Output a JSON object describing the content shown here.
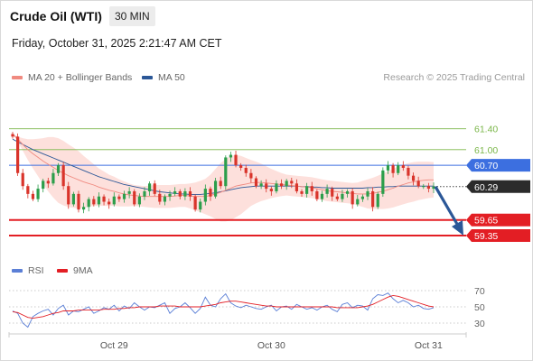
{
  "header": {
    "title": "Crude Oil (WTI)",
    "interval": "30 MIN",
    "datetime": "Friday, October 31, 2025 2:21:47 AM CET"
  },
  "legend": {
    "ma20_label": "MA 20 + Bollinger Bands",
    "ma50_label": "MA 50",
    "credit": "Research © 2025 Trading Central"
  },
  "rsi_legend": {
    "rsi_label": "RSI",
    "ma_label": "9MA"
  },
  "colors": {
    "up": "#2c9e4b",
    "down": "#d9342b",
    "ma20": "#f08a80",
    "ma50": "#2b5797",
    "band_fill": "#fde0dc",
    "support": "#e31e24",
    "resistance_green": "#7ab648",
    "pivot_blue": "#3c6fe0",
    "current": "#2b2b2b",
    "arrow": "#2b5797",
    "rsi": "#5b7fd6",
    "rsi_ma": "#e31e24"
  },
  "chart_data": [
    {
      "type": "candlestick",
      "title": "Crude Oil (WTI)",
      "interval": "30 MIN",
      "ylim": [
        59.16,
        61.62
      ],
      "x_tick_labels": [
        "Oct 29",
        "Oct 30",
        "Oct 31"
      ],
      "x_tick_index": [
        20,
        51,
        82
      ],
      "closes": [
        61.25,
        60.55,
        60.3,
        60.15,
        60.05,
        60.25,
        60.4,
        60.35,
        60.55,
        60.7,
        60.3,
        59.95,
        60.15,
        59.85,
        59.9,
        60.05,
        59.95,
        60.1,
        60.0,
        59.95,
        60.1,
        60.05,
        60.15,
        60.2,
        59.95,
        60.1,
        60.2,
        60.35,
        60.15,
        60.0,
        60.1,
        60.15,
        60.2,
        60.1,
        60.2,
        60.1,
        59.85,
        60.0,
        60.25,
        60.1,
        60.4,
        60.3,
        60.85,
        60.9,
        60.7,
        60.65,
        60.55,
        60.45,
        60.3,
        60.35,
        60.25,
        60.2,
        60.35,
        60.3,
        60.4,
        60.35,
        60.2,
        60.15,
        60.3,
        60.2,
        60.05,
        60.15,
        60.25,
        60.1,
        60.05,
        60.15,
        60.2,
        59.95,
        60.05,
        60.1,
        60.2,
        59.9,
        60.15,
        60.6,
        60.7,
        60.55,
        60.7,
        60.65,
        60.5,
        60.4,
        60.3,
        60.3,
        60.25,
        60.29
      ],
      "open0": 61.3,
      "series_bands": {
        "ma20": [
          61.3,
          61.2,
          61.1,
          61.0,
          60.92,
          60.85,
          60.78,
          60.72,
          60.66,
          60.6,
          60.55,
          60.5,
          60.46,
          60.42,
          60.38,
          60.35,
          60.32,
          60.28,
          60.25,
          60.22,
          60.2,
          60.17,
          60.15,
          60.13,
          60.12,
          60.11,
          60.1,
          60.1,
          60.1,
          60.1,
          60.1,
          60.1,
          60.11,
          60.12,
          60.12,
          60.11,
          60.1,
          60.1,
          60.1,
          60.12,
          60.15,
          60.18,
          60.22,
          60.26,
          60.3,
          60.32,
          60.34,
          60.36,
          60.37,
          60.37,
          60.36,
          60.35,
          60.34,
          60.33,
          60.32,
          60.31,
          60.3,
          60.29,
          60.28,
          60.27,
          60.25,
          60.23,
          60.21,
          60.2,
          60.19,
          60.18,
          60.17,
          60.16,
          60.15,
          60.15,
          60.15,
          60.16,
          60.18,
          60.2,
          60.23,
          60.26,
          60.3,
          60.33,
          60.36,
          60.38,
          60.4,
          60.41,
          60.42,
          60.42
        ],
        "upper_offset": [
          0.0,
          0.05,
          0.12,
          0.2,
          0.28,
          0.36,
          0.44,
          0.52,
          0.58,
          0.62,
          0.62,
          0.6,
          0.58,
          0.55,
          0.5,
          0.45,
          0.4,
          0.36,
          0.33,
          0.3,
          0.28,
          0.26,
          0.24,
          0.22,
          0.2,
          0.2,
          0.2,
          0.21,
          0.22,
          0.22,
          0.22,
          0.22,
          0.22,
          0.22,
          0.22,
          0.24,
          0.27,
          0.3,
          0.34,
          0.4,
          0.48,
          0.56,
          0.6,
          0.62,
          0.6,
          0.56,
          0.5,
          0.44,
          0.4,
          0.36,
          0.32,
          0.28,
          0.25,
          0.22,
          0.2,
          0.2,
          0.2,
          0.2,
          0.2,
          0.2,
          0.2,
          0.2,
          0.2,
          0.2,
          0.2,
          0.2,
          0.2,
          0.2,
          0.22,
          0.25,
          0.28,
          0.3,
          0.32,
          0.34,
          0.36,
          0.37,
          0.38,
          0.38,
          0.38,
          0.38,
          0.37,
          0.36,
          0.35,
          0.34
        ],
        "ma50": [
          61.2,
          61.15,
          61.1,
          61.05,
          61.0,
          60.96,
          60.92,
          60.88,
          60.84,
          60.8,
          60.76,
          60.72,
          60.68,
          60.64,
          60.6,
          60.56,
          60.52,
          60.48,
          60.45,
          60.42,
          60.39,
          60.36,
          60.33,
          60.31,
          60.29,
          60.27,
          60.25,
          60.23,
          60.21,
          60.19,
          60.18,
          60.17,
          60.16,
          60.15,
          60.15,
          60.14,
          60.14,
          60.14,
          60.15,
          60.16,
          60.17,
          60.19,
          60.21,
          60.23,
          60.25,
          60.27,
          60.28,
          60.29,
          60.3,
          60.3,
          60.3,
          60.3,
          60.3,
          60.3,
          60.3,
          60.3,
          60.3,
          60.29,
          60.29,
          60.28,
          60.28,
          60.27,
          60.27,
          60.26,
          60.26,
          60.26,
          60.26,
          60.26,
          60.26,
          60.26,
          60.27,
          60.27,
          60.28,
          60.28,
          60.29,
          60.29,
          60.3,
          60.3,
          60.3,
          60.3,
          60.3,
          60.3,
          60.3,
          60.3
        ]
      },
      "levels": [
        {
          "value": 61.4,
          "label": "61.40",
          "kind": "resistance"
        },
        {
          "value": 61.0,
          "label": "61.00",
          "kind": "resistance"
        },
        {
          "value": 60.7,
          "label": "60.70",
          "kind": "pivot"
        },
        {
          "value": 60.29,
          "label": "60.29",
          "kind": "current"
        },
        {
          "value": 59.65,
          "label": "59.65",
          "kind": "support"
        },
        {
          "value": 59.35,
          "label": "59.35",
          "kind": "support"
        }
      ],
      "forecast_arrow": {
        "from_value": 60.29,
        "to_value": 59.42,
        "direction": "down"
      }
    },
    {
      "type": "line",
      "title": "RSI",
      "ylim": [
        20,
        80
      ],
      "y_ticks": [
        70,
        50,
        30
      ],
      "y_tick_labels": [
        "70",
        "50",
        "30"
      ],
      "series": [
        {
          "name": "RSI",
          "values": [
            45,
            42,
            30,
            25,
            38,
            42,
            45,
            47,
            40,
            48,
            52,
            40,
            45,
            44,
            47,
            50,
            42,
            45,
            49,
            47,
            52,
            45,
            51,
            48,
            55,
            50,
            46,
            50,
            49,
            52,
            55,
            42,
            48,
            50,
            55,
            49,
            42,
            48,
            62,
            52,
            50,
            60,
            66,
            55,
            51,
            49,
            52,
            50,
            48,
            47,
            50,
            52,
            45,
            50,
            51,
            47,
            53,
            50,
            47,
            49,
            46,
            50,
            52,
            47,
            44,
            53,
            55,
            49,
            52,
            51,
            46,
            60,
            65,
            64,
            67,
            60,
            55,
            58,
            55,
            50,
            52,
            48,
            47,
            49
          ]
        },
        {
          "name": "9MA",
          "values": [
            44,
            43,
            40,
            37,
            36,
            37,
            38,
            40,
            42,
            43,
            45,
            45,
            45,
            46,
            46,
            46,
            46,
            46,
            47,
            47,
            47,
            48,
            48,
            49,
            49,
            50,
            50,
            50,
            50,
            51,
            51,
            51,
            51,
            50,
            50,
            50,
            50,
            50,
            51,
            52,
            53,
            55,
            56,
            57,
            57,
            56,
            55,
            54,
            53,
            52,
            51,
            51,
            50,
            50,
            50,
            50,
            50,
            50,
            50,
            50,
            50,
            50,
            50,
            50,
            49,
            49,
            49,
            49,
            49,
            50,
            51,
            53,
            56,
            59,
            62,
            64,
            63,
            61,
            59,
            57,
            55,
            53,
            51,
            50
          ]
        }
      ]
    }
  ]
}
